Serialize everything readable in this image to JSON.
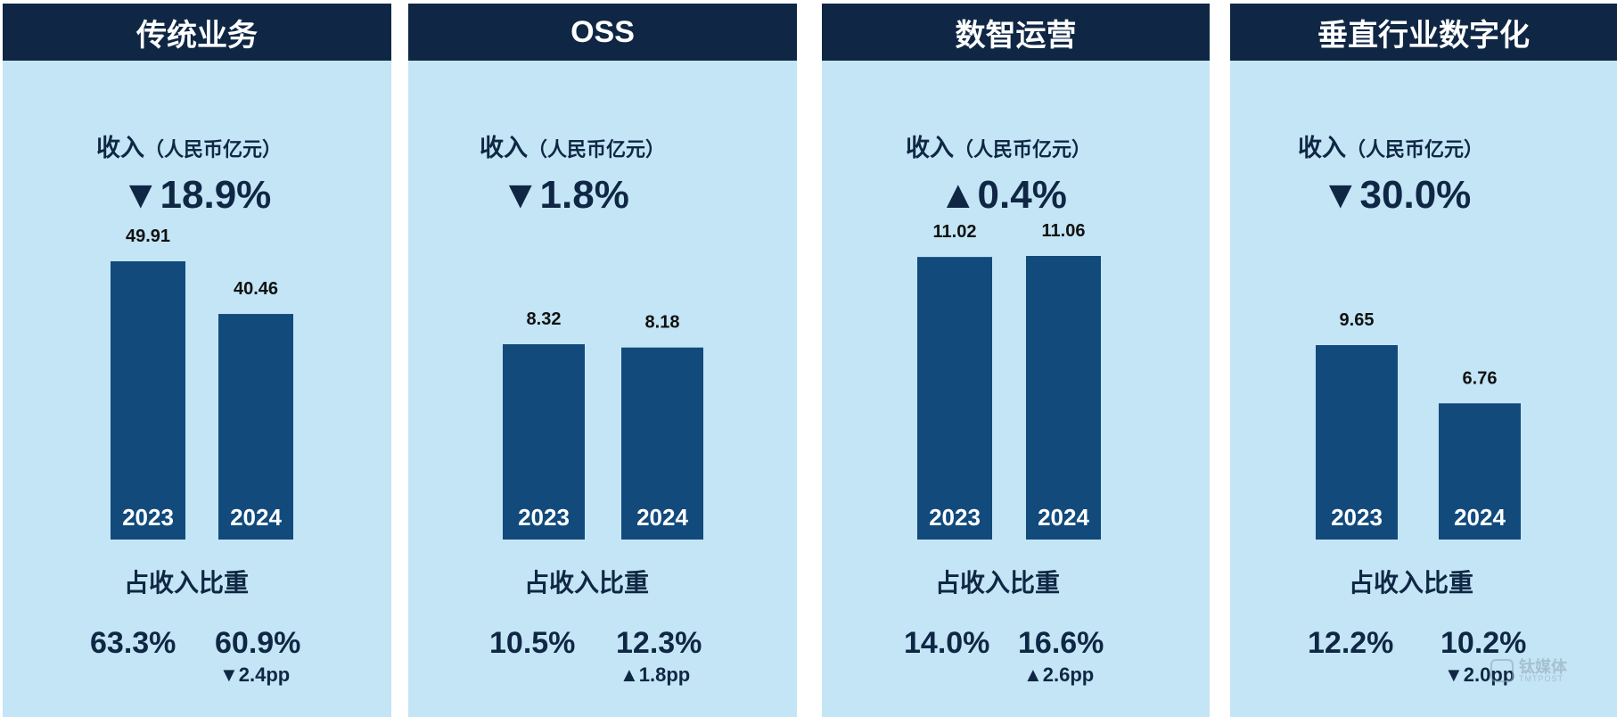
{
  "chart_data": [
    {
      "type": "bar",
      "title": "传统业务",
      "ylabel": "收入（人民币亿元）",
      "categories": [
        "2023",
        "2024"
      ],
      "values": [
        49.91,
        40.46
      ],
      "value_labels": [
        "49.91",
        "40.46"
      ],
      "revenue_change": "▼18.9%",
      "share_label": "占收入比重",
      "share": [
        "63.3%",
        "60.9%"
      ],
      "share_change": "▼2.4pp"
    },
    {
      "type": "bar",
      "title": "OSS",
      "ylabel": "收入（人民币亿元）",
      "categories": [
        "2023",
        "2024"
      ],
      "values": [
        8.32,
        8.18
      ],
      "value_labels": [
        "8.32",
        "8.18"
      ],
      "revenue_change": "▼1.8%",
      "share_label": "占收入比重",
      "share": [
        "10.5%",
        "12.3%"
      ],
      "share_change": "▲1.8pp"
    },
    {
      "type": "bar",
      "title": "数智运营",
      "ylabel": "收入（人民币亿元）",
      "categories": [
        "2023",
        "2024"
      ],
      "values": [
        11.02,
        11.06
      ],
      "value_labels": [
        "11.02",
        "11.06"
      ],
      "revenue_change": "▲0.4%",
      "share_label": "占收入比重",
      "share": [
        "14.0%",
        "16.6%"
      ],
      "share_change": "▲2.6pp"
    },
    {
      "type": "bar",
      "title": "垂直行业数字化",
      "ylabel": "收入（人民币亿元）",
      "categories": [
        "2023",
        "2024"
      ],
      "values": [
        9.65,
        6.76
      ],
      "value_labels": [
        "9.65",
        "6.76"
      ],
      "revenue_change": "▼30.0%",
      "share_label": "占收入比重",
      "share": [
        "12.2%",
        "10.2%"
      ],
      "share_change": "▼2.0pp"
    }
  ],
  "labels": {
    "revenue_main": "收入",
    "revenue_unit": "（人民币亿元）"
  },
  "watermark": {
    "cn": "钛媒体",
    "en": "TMTPOST"
  },
  "colors": {
    "header_bg": "#0f2744",
    "panel_bg": "#c3e5f5",
    "bar": "#124a7c",
    "text": "#0f2744"
  }
}
